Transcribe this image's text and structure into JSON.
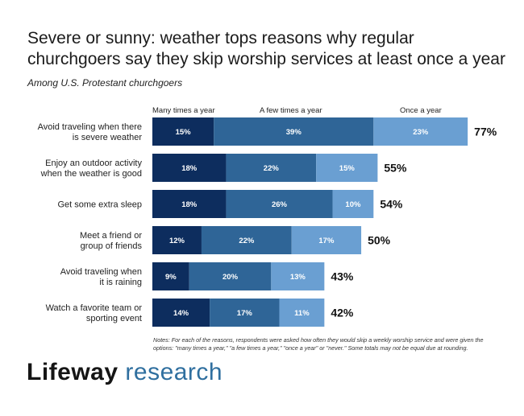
{
  "title": "Severe or sunny: weather tops reasons why regular churchgoers say they skip worship services at least once a year",
  "subtitle": "Among U.S. Protestant churchgoers",
  "notes": "Notes: For each of the reasons, respondents were asked how often they would skip a weekly worship service and were given the options: \"many times a year,\" \"a few times a year,\" \"once a year\" or \"never.\" Some totals may not be equal due at rounding.",
  "logo": {
    "brand": "Lifeway",
    "research": "research"
  },
  "colors": {
    "many": "#0d2d5e",
    "few": "#2f6597",
    "once": "#6a9fd2",
    "label_text": "#ffffff",
    "category_text": "#222222",
    "total_text": "#111111"
  },
  "chart_data": {
    "type": "bar",
    "orientation": "horizontal",
    "stacked": true,
    "unit": "%",
    "categories": [
      "Avoid traveling when there is severe weather",
      "Enjoy an outdoor activity when the weather is good",
      "Get some extra sleep",
      "Meet a friend or group of friends",
      "Avoid traveling when it is raining",
      "Watch a favorite team or sporting event"
    ],
    "category_lines": [
      [
        "Avoid traveling when there",
        "is severe weather"
      ],
      [
        "Enjoy an outdoor activity",
        "when the weather is good"
      ],
      [
        "Get some extra sleep"
      ],
      [
        "Meet a friend or",
        "group of friends"
      ],
      [
        "Avoid traveling when",
        "it is raining"
      ],
      [
        "Watch a favorite team or",
        "sporting event"
      ]
    ],
    "series": [
      {
        "name": "Many times a year",
        "values": [
          15,
          18,
          18,
          12,
          9,
          14
        ]
      },
      {
        "name": "A few times a year",
        "values": [
          39,
          22,
          26,
          22,
          20,
          17
        ]
      },
      {
        "name": "Once a year",
        "values": [
          23,
          15,
          10,
          17,
          13,
          11
        ]
      }
    ],
    "totals": [
      "77%",
      "55%",
      "54%",
      "50%",
      "43%",
      "42%"
    ],
    "legend_position": "top"
  }
}
